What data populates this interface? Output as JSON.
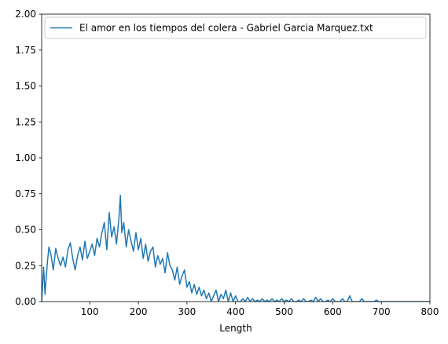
{
  "chart_data": {
    "type": "line",
    "xlabel": "Length",
    "ylabel": "",
    "xlim": [
      1,
      800
    ],
    "ylim": [
      0,
      2.0
    ],
    "xticks": [
      100,
      200,
      300,
      400,
      500,
      600,
      700,
      800
    ],
    "xtick_labels": [
      "100",
      "200",
      "300",
      "400",
      "500",
      "600",
      "700",
      "800"
    ],
    "yticks": [
      0,
      0.25,
      0.5,
      0.75,
      1.0,
      1.25,
      1.5,
      1.75,
      2.0
    ],
    "ytick_labels": [
      "0.00",
      "0.25",
      "0.50",
      "0.75",
      "1.00",
      "1.25",
      "1.50",
      "1.75",
      "2.00"
    ],
    "grid": false,
    "legend_position": "top-right",
    "series": [
      {
        "name": "El amor en los tiempos del colera - Gabriel Garcia Marquez.txt",
        "color": "#1f77b4",
        "x": [
          1,
          5,
          8,
          10,
          13,
          16,
          20,
          25,
          30,
          35,
          40,
          45,
          50,
          55,
          60,
          65,
          70,
          75,
          80,
          85,
          90,
          95,
          100,
          105,
          110,
          115,
          120,
          125,
          130,
          135,
          140,
          145,
          150,
          155,
          160,
          163,
          166,
          170,
          175,
          180,
          185,
          190,
          195,
          200,
          205,
          210,
          215,
          220,
          225,
          230,
          235,
          240,
          245,
          250,
          255,
          260,
          265,
          270,
          275,
          280,
          285,
          290,
          295,
          300,
          305,
          310,
          315,
          320,
          325,
          330,
          335,
          340,
          345,
          350,
          355,
          360,
          365,
          370,
          375,
          380,
          385,
          390,
          395,
          400,
          405,
          410,
          415,
          420,
          425,
          430,
          435,
          440,
          445,
          450,
          455,
          460,
          465,
          470,
          475,
          480,
          485,
          490,
          495,
          500,
          505,
          510,
          515,
          520,
          525,
          530,
          535,
          540,
          545,
          550,
          555,
          560,
          565,
          570,
          575,
          580,
          585,
          590,
          595,
          600,
          605,
          610,
          615,
          620,
          625,
          630,
          635,
          640,
          645,
          650,
          655,
          660,
          665,
          670,
          675,
          680,
          685,
          690,
          695,
          700,
          720,
          740,
          760,
          780,
          800
        ],
        "y": [
          0.0,
          0.24,
          0.05,
          0.15,
          0.28,
          0.38,
          0.33,
          0.22,
          0.37,
          0.3,
          0.25,
          0.31,
          0.24,
          0.36,
          0.41,
          0.3,
          0.22,
          0.32,
          0.38,
          0.29,
          0.42,
          0.3,
          0.35,
          0.4,
          0.32,
          0.44,
          0.38,
          0.48,
          0.55,
          0.36,
          0.62,
          0.45,
          0.52,
          0.4,
          0.58,
          0.74,
          0.48,
          0.55,
          0.38,
          0.5,
          0.42,
          0.35,
          0.48,
          0.36,
          0.44,
          0.3,
          0.4,
          0.28,
          0.35,
          0.38,
          0.24,
          0.32,
          0.26,
          0.3,
          0.2,
          0.34,
          0.25,
          0.22,
          0.15,
          0.24,
          0.12,
          0.18,
          0.22,
          0.1,
          0.14,
          0.06,
          0.12,
          0.05,
          0.1,
          0.04,
          0.08,
          0.02,
          0.06,
          0.0,
          0.04,
          0.08,
          0.0,
          0.05,
          0.02,
          0.08,
          0.0,
          0.06,
          0.0,
          0.04,
          0.0,
          0.0,
          0.02,
          0.0,
          0.03,
          0.0,
          0.02,
          0.0,
          0.01,
          0.0,
          0.02,
          0.0,
          0.01,
          0.0,
          0.02,
          0.0,
          0.01,
          0.0,
          0.02,
          0.0,
          0.01,
          0.0,
          0.02,
          0.0,
          0.0,
          0.01,
          0.0,
          0.02,
          0.0,
          0.0,
          0.01,
          0.0,
          0.03,
          0.0,
          0.02,
          0.0,
          0.0,
          0.01,
          0.0,
          0.02,
          0.0,
          0.0,
          0.0,
          0.02,
          0.0,
          0.0,
          0.04,
          0.0,
          0.0,
          0.0,
          0.0,
          0.02,
          0.0,
          0.0,
          0.0,
          0.0,
          0.0,
          0.01,
          0.0,
          0.0,
          0.0,
          0.0,
          0.0,
          0.0,
          0.0
        ]
      }
    ]
  }
}
